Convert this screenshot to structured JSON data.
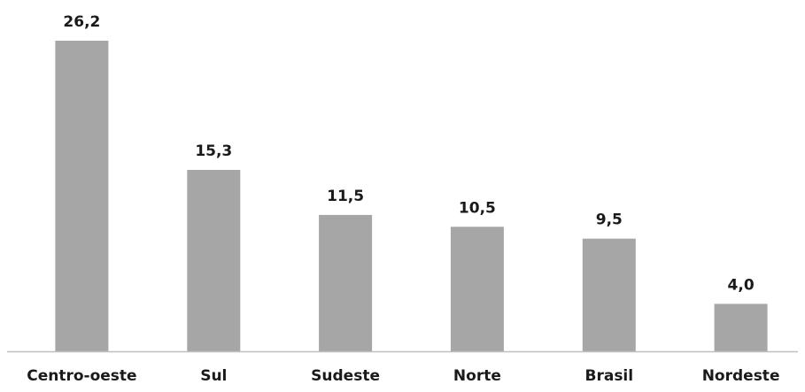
{
  "chart_data": {
    "type": "bar",
    "categories": [
      "Centro-oeste",
      "Sul",
      "Sudeste",
      "Norte",
      "Brasil",
      "Nordeste"
    ],
    "values": [
      26.2,
      15.3,
      11.5,
      10.5,
      9.5,
      4.0
    ],
    "value_labels": [
      "26,2",
      "15,3",
      "11,5",
      "10,5",
      "9,5",
      "4,0"
    ],
    "title": "",
    "xlabel": "",
    "ylabel": "",
    "ylim": [
      0,
      26.2
    ],
    "grid": false,
    "legend": "none",
    "bar_color": "#a6a6a6",
    "axis_color": "#bfbfbf"
  }
}
